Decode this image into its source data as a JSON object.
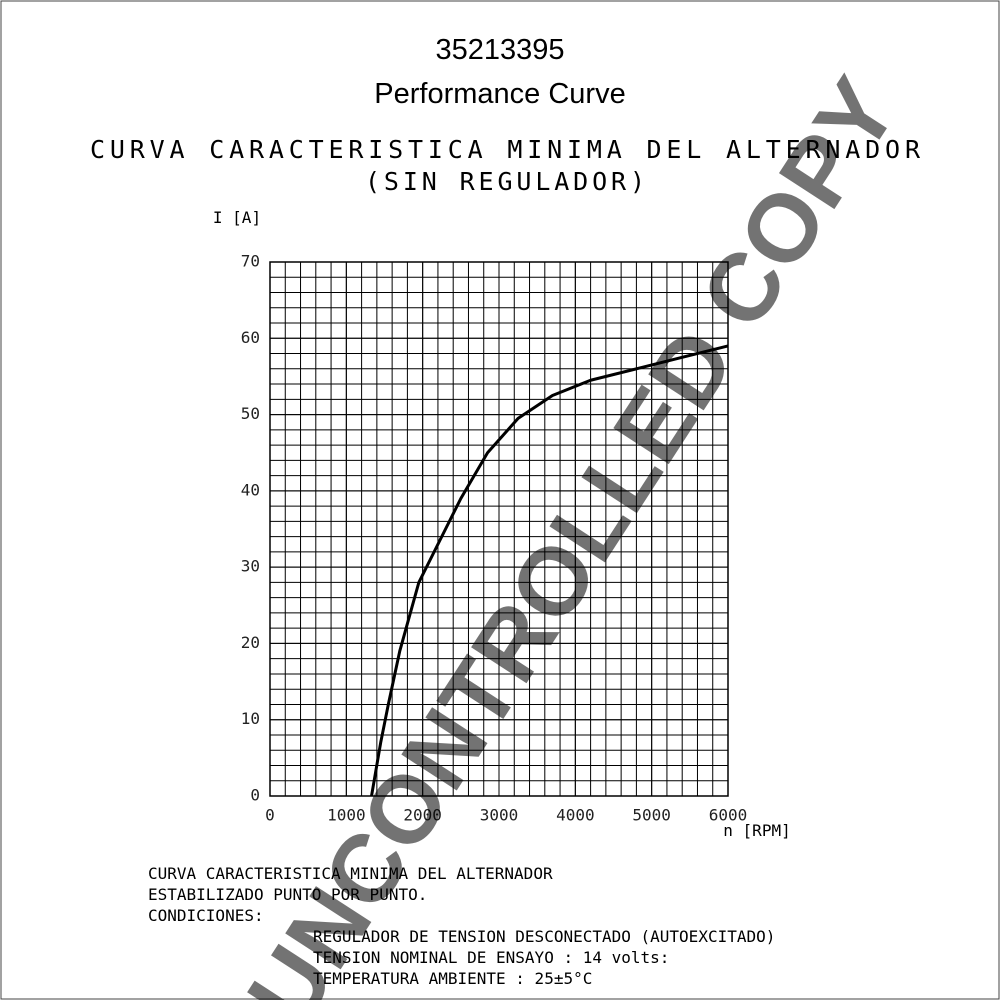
{
  "chart_data": {
    "type": "line",
    "title": "35213395",
    "subtitle": "Performance Curve",
    "heading": [
      "CURVA CARACTERISTICA MINIMA DEL ALTERNADOR",
      "(SIN REGULADOR)"
    ],
    "y_label": "I [A]",
    "x_label": "n [RPM]",
    "x": [
      1330,
      1450,
      1550,
      1700,
      1950,
      2200,
      2500,
      2850,
      3250,
      3700,
      4200,
      4800,
      5400,
      6000
    ],
    "series": [
      {
        "name": "I",
        "color": "#000000",
        "values": [
          0,
          7,
          12,
          19,
          28,
          33,
          39,
          45,
          49.5,
          52.5,
          54.5,
          56,
          57.5,
          59
        ]
      }
    ],
    "xlim": [
      0,
      6000
    ],
    "xticks": [
      0,
      1000,
      2000,
      3000,
      4000,
      5000,
      6000
    ],
    "ylim": [
      0,
      70
    ],
    "yticks": [
      0,
      10,
      20,
      30,
      40,
      50,
      60,
      70
    ],
    "grid": true,
    "notes": [
      "CURVA CARACTERISTICA MINIMA DEL ALTERNADOR",
      "ESTABILIZADO PUNTO POR PUNTO.",
      "CONDICIONES:"
    ],
    "conditions": [
      "REGULADOR DE TENSION DESCONECTADO (AUTOEXCITADO)",
      "TENSION NOMINAL DE ENSAYO : 14 volts:",
      "TEMPERATURA AMBIENTE : 25±5°C"
    ],
    "watermark": "UNCONTROLLED COPY"
  }
}
